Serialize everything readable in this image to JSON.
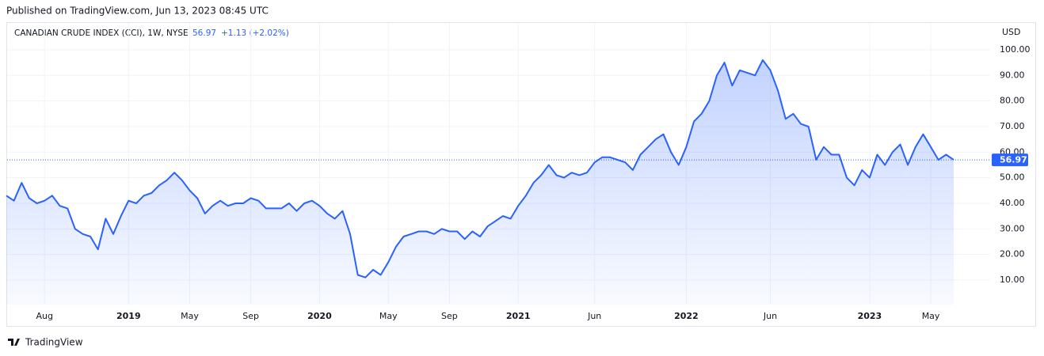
{
  "header": "Published on TradingView.com, Jun 13, 2023 08:45 UTC",
  "footer": "TradingView",
  "chart_data": {
    "type": "area",
    "title": "CANADIAN CRUDE INDEX (CCI), 1W, NYSE",
    "change_label": "+1.13 (+2.02%)",
    "currency": "USD",
    "color": "#2962ff",
    "grid": true,
    "categories": [
      null,
      null,
      null,
      null,
      null,
      "Aug",
      null,
      null,
      null,
      null,
      null,
      null,
      null,
      null,
      null,
      null,
      "2019",
      null,
      null,
      null,
      null,
      null,
      null,
      null,
      "May",
      null,
      null,
      null,
      null,
      null,
      null,
      null,
      "Sep",
      null,
      null,
      null,
      null,
      null,
      null,
      null,
      null,
      "2020",
      null,
      null,
      null,
      null,
      null,
      null,
      null,
      null,
      "May",
      null,
      null,
      null,
      null,
      null,
      null,
      null,
      "Sep",
      null,
      null,
      null,
      null,
      null,
      null,
      null,
      null,
      "2021",
      null,
      null,
      null,
      null,
      null,
      null,
      null,
      null,
      null,
      "Jun",
      null,
      null,
      null,
      null,
      null,
      null,
      null,
      null,
      null,
      null,
      null,
      "2022",
      null,
      null,
      null,
      null,
      null,
      null,
      null,
      null,
      null,
      null,
      "Jun",
      null,
      null,
      null,
      null,
      null,
      null,
      null,
      null,
      null,
      null,
      null,
      null,
      "2023",
      null,
      null,
      null,
      null,
      null,
      null,
      null,
      "May",
      null,
      null,
      null
    ],
    "values": [
      43,
      41,
      48,
      42,
      40,
      41,
      43,
      39,
      38,
      30,
      28,
      27,
      22,
      34,
      28,
      35,
      41,
      40,
      43,
      44,
      47,
      49,
      52,
      49,
      45,
      42,
      36,
      39,
      41,
      39,
      40,
      40,
      42,
      41,
      38,
      38,
      38,
      40,
      37,
      40,
      41,
      39,
      36,
      34,
      37,
      28,
      12,
      11,
      14,
      12,
      17,
      23,
      27,
      28,
      29,
      29,
      28,
      30,
      29,
      29,
      26,
      29,
      27,
      31,
      33,
      35,
      34,
      39,
      43,
      48,
      51,
      55,
      51,
      50,
      52,
      51,
      52,
      56,
      58,
      58,
      57,
      56,
      53,
      59,
      62,
      65,
      67,
      60,
      55,
      62,
      72,
      75,
      80,
      90,
      95,
      86,
      92,
      91,
      90,
      96,
      92,
      84,
      73,
      75,
      71,
      70,
      57,
      62,
      59,
      59,
      50,
      47,
      53,
      50,
      59,
      55,
      60,
      63,
      55,
      62,
      67,
      62,
      57,
      59,
      56.97
    ],
    "ylim": [
      0.4,
      110.2
    ],
    "yticks": [
      {
        "value": 10,
        "label": "10.00"
      },
      {
        "value": 20,
        "label": "20.00"
      },
      {
        "value": 30,
        "label": "30.00"
      },
      {
        "value": 40,
        "label": "40.00"
      },
      {
        "value": 50,
        "label": "50.00"
      },
      {
        "value": 60,
        "label": "60.00"
      },
      {
        "value": 70,
        "label": "70.00"
      },
      {
        "value": 80,
        "label": "80.00"
      },
      {
        "value": 90,
        "label": "90.00"
      },
      {
        "value": 100,
        "label": "100.00"
      }
    ]
  }
}
